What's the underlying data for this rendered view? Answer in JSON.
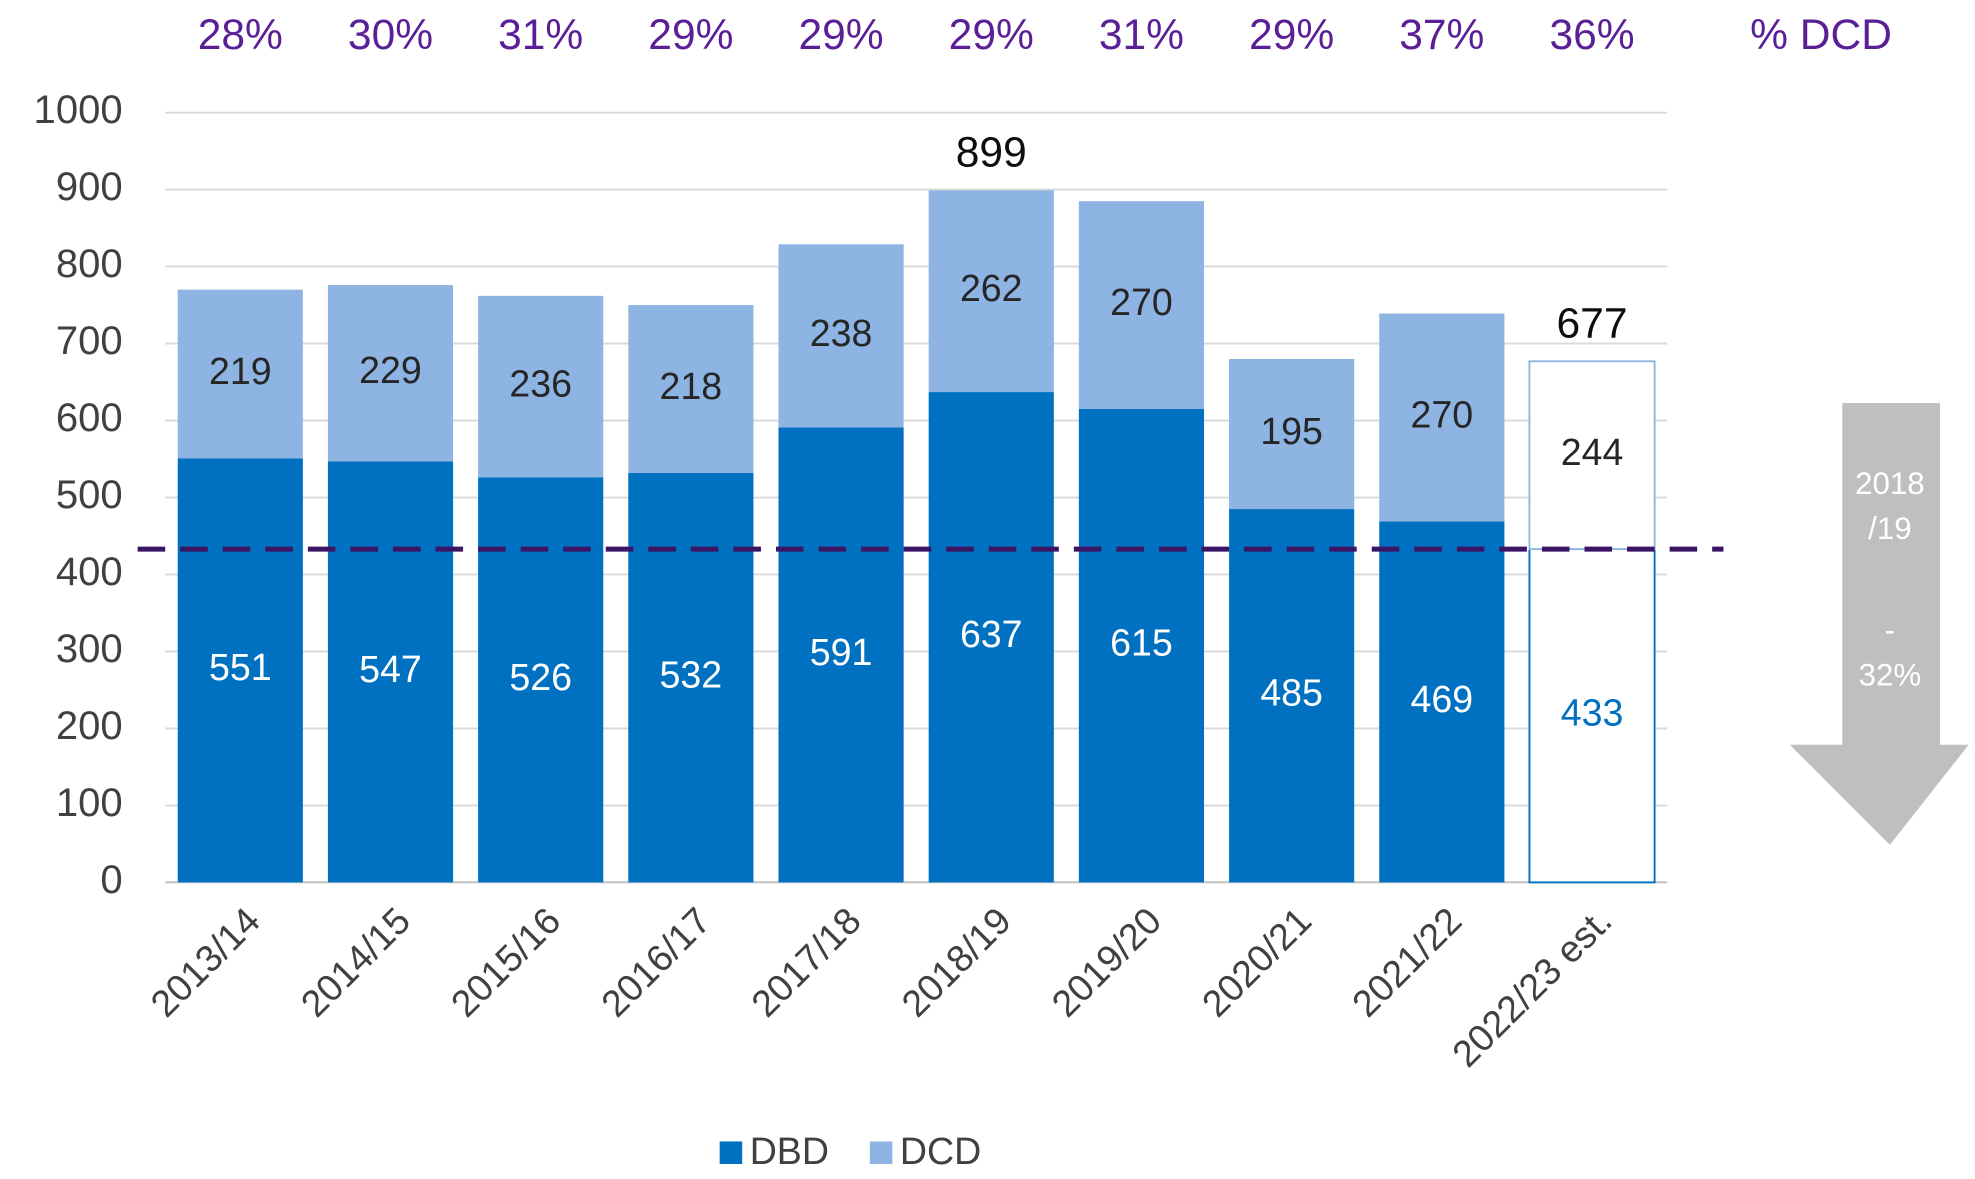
{
  "chart_data": {
    "type": "stacked_bar",
    "categories": [
      "2013/14",
      "2014/15",
      "2015/16",
      "2016/17",
      "2017/18",
      "2018/19",
      "2019/20",
      "2020/21",
      "2021/22",
      "2022/23 est."
    ],
    "series": [
      {
        "name": "DBD",
        "color": "#0070c0",
        "values": [
          551,
          547,
          526,
          532,
          591,
          637,
          615,
          485,
          469,
          433
        ]
      },
      {
        "name": "DCD",
        "color": "#8eb4e3",
        "values": [
          219,
          229,
          236,
          218,
          238,
          262,
          270,
          195,
          270,
          244
        ]
      }
    ],
    "outlined": [
      false,
      false,
      false,
      false,
      false,
      false,
      false,
      false,
      false,
      true
    ],
    "totals": [
      null,
      null,
      null,
      null,
      null,
      899,
      null,
      null,
      null,
      677
    ],
    "share_label": "% DCD",
    "dcd_share": [
      28,
      30,
      31,
      29,
      29,
      29,
      31,
      29,
      37,
      36
    ],
    "dcd_share_labels": [
      "28%",
      "30%",
      "31%",
      "29%",
      "29%",
      "29%",
      "31%",
      "29%",
      "37%",
      "36%"
    ],
    "share_color": "#5a1f96",
    "reference_line": {
      "value": 433,
      "color": "#3b1464"
    },
    "arrow_label": [
      "2018",
      "/19",
      "-",
      "32%"
    ],
    "ylim": [
      0,
      1000
    ],
    "yticks": [
      0,
      100,
      200,
      300,
      400,
      500,
      600,
      700,
      800,
      900,
      1000
    ],
    "grid": true,
    "legend": "bottom"
  }
}
